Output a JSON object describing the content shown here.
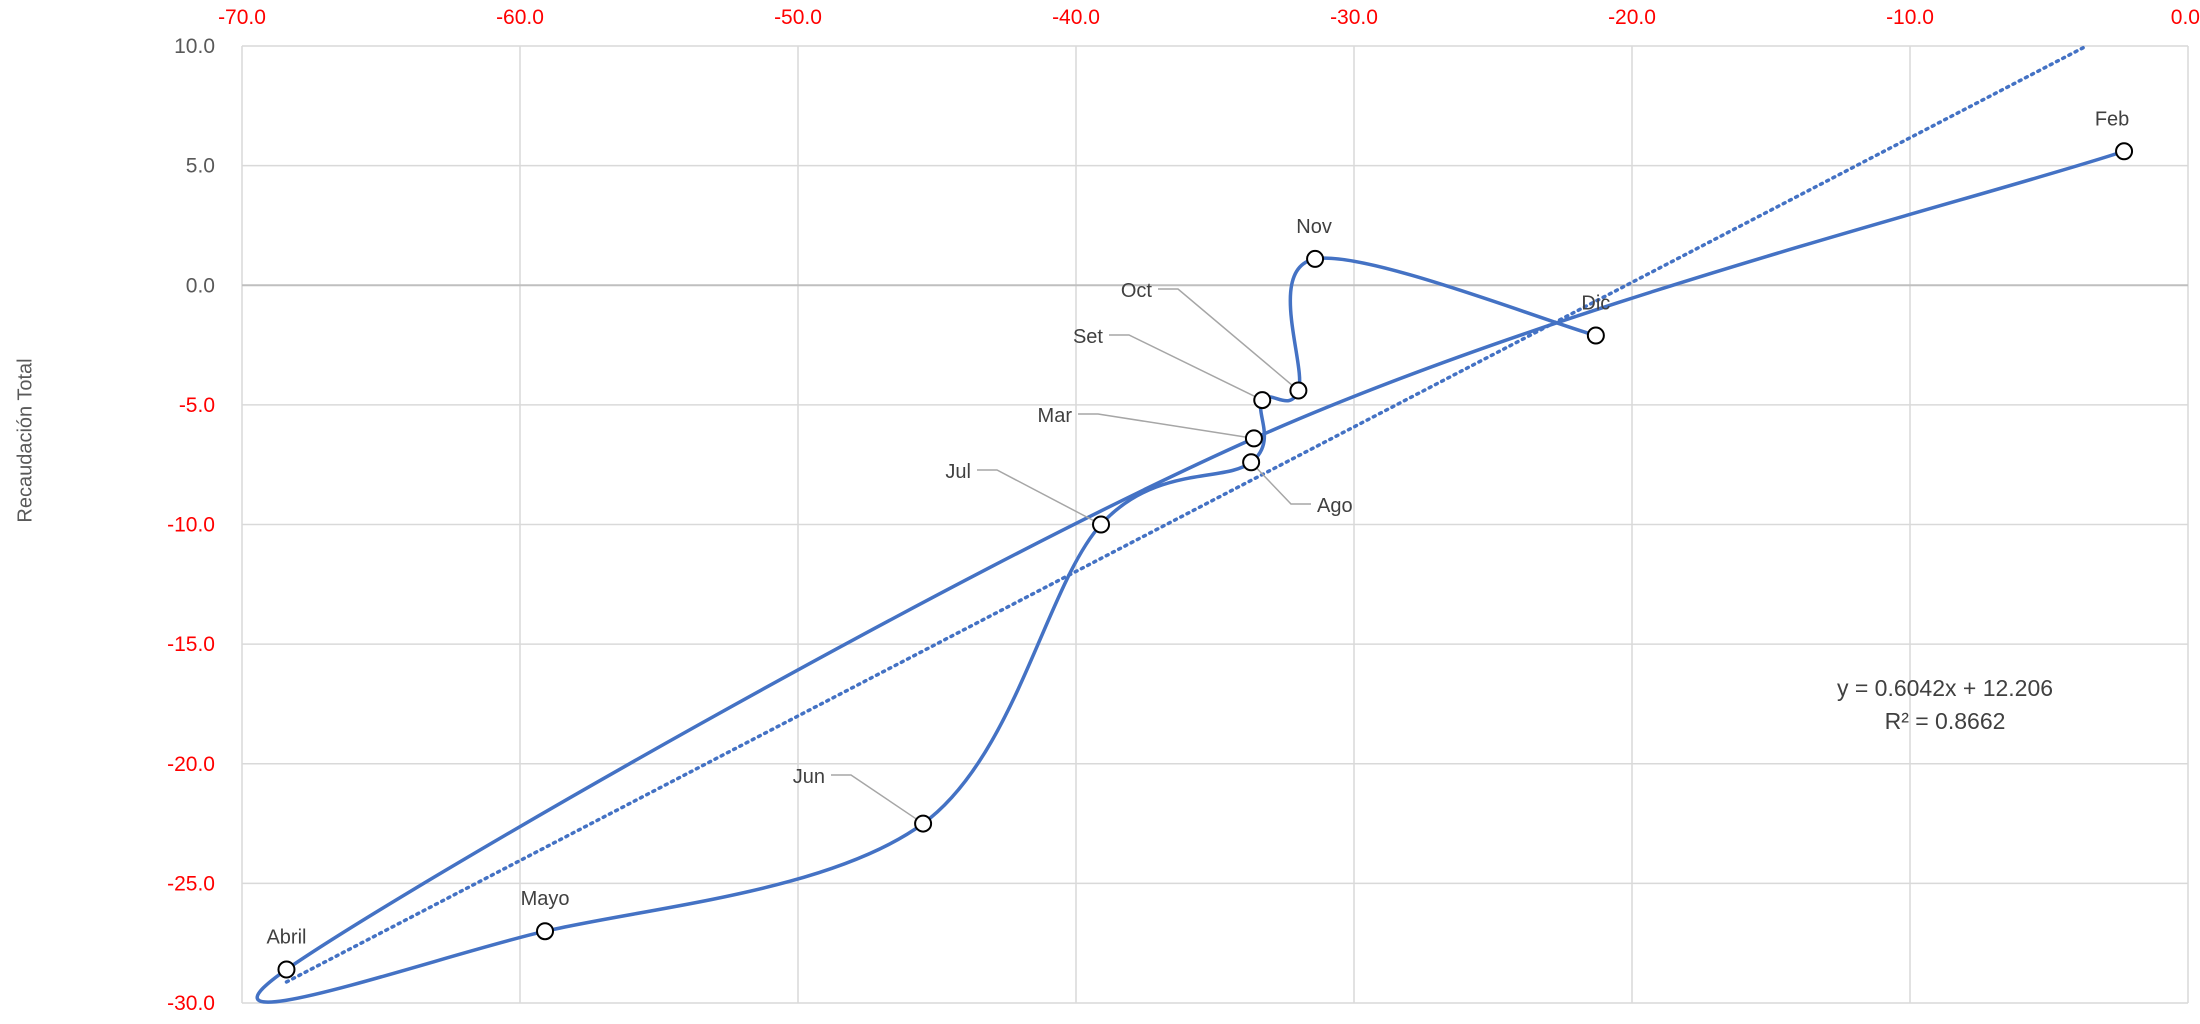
{
  "chart_data": {
    "type": "scatter",
    "title": "",
    "xlabel": "",
    "ylabel": "Recaudación Total",
    "xlim": [
      -70,
      0
    ],
    "ylim": [
      -30,
      10
    ],
    "x_ticks": [
      "-70.0",
      "-60.0",
      "-50.0",
      "-40.0",
      "-30.0",
      "-20.0",
      "-10.0",
      "0.0"
    ],
    "y_ticks": [
      "10.0",
      "5.0",
      "0.0",
      "-5.0",
      "-10.0",
      "-15.0",
      "-20.0",
      "-25.0",
      "-30.0"
    ],
    "x_tick_values": [
      -70,
      -60,
      -50,
      -40,
      -30,
      -20,
      -10,
      0
    ],
    "y_tick_values": [
      10,
      5,
      0,
      -5,
      -10,
      -15,
      -20,
      -25,
      -30
    ],
    "grid": true,
    "colors": {
      "series": "#4472C4",
      "x_tick": "#FF0000",
      "y_tick": "#FF0000",
      "grid": "#D9D9D9",
      "label": "#404040",
      "leader": "#A6A6A6"
    },
    "points": [
      {
        "label": "Feb",
        "x": -2.3,
        "y": 5.6
      },
      {
        "label": "Mar",
        "x": -33.6,
        "y": -6.4
      },
      {
        "label": "Abril",
        "x": -68.4,
        "y": -28.6
      },
      {
        "label": "Mayo",
        "x": -59.1,
        "y": -27.0
      },
      {
        "label": "Jun",
        "x": -45.5,
        "y": -22.5
      },
      {
        "label": "Jul",
        "x": -39.1,
        "y": -10.0
      },
      {
        "label": "Ago",
        "x": -33.7,
        "y": -7.4
      },
      {
        "label": "Set",
        "x": -33.3,
        "y": -4.8
      },
      {
        "label": "Oct",
        "x": -32.0,
        "y": -4.4
      },
      {
        "label": "Nov",
        "x": -31.4,
        "y": 1.1
      },
      {
        "label": "Dic",
        "x": -21.3,
        "y": -2.1
      }
    ],
    "trendline": {
      "type": "linear",
      "style": "dotted",
      "slope": 0.6042,
      "intercept": 12.206,
      "equation": "y = 0.6042x + 12.206",
      "r2": "R² = 0.8662"
    }
  }
}
